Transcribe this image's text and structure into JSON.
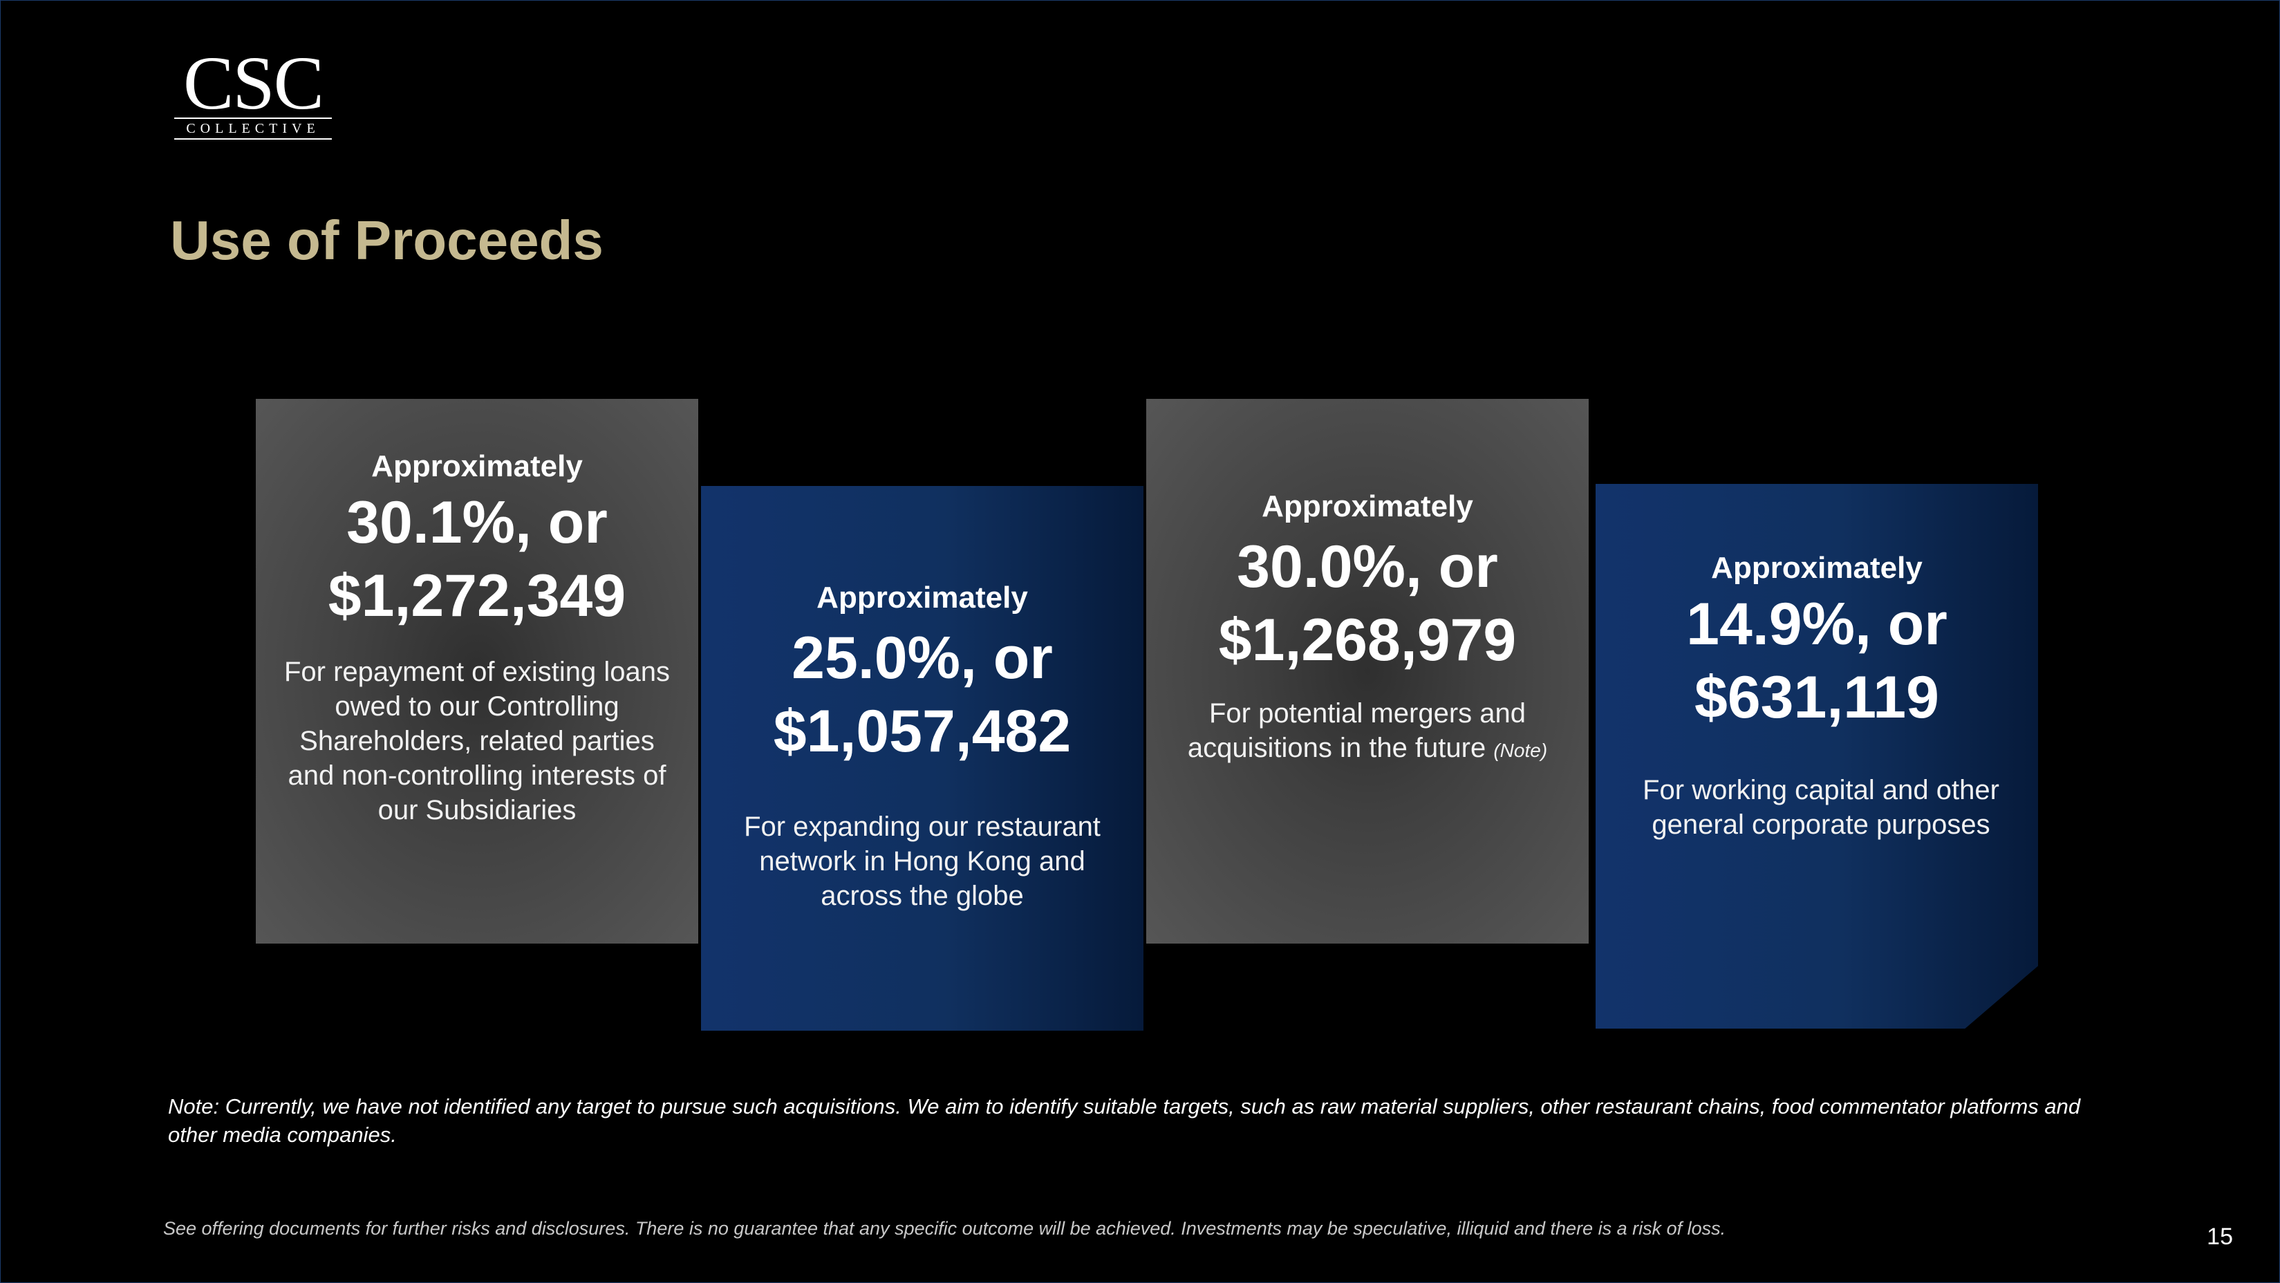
{
  "logo": {
    "mark": "CSC",
    "subtitle": "COLLECTIVE"
  },
  "page_title": "Use of Proceeds",
  "cards": [
    {
      "label": "Approximately",
      "amount_line1": "30.1%, or",
      "amount_line2": "$1,272,349",
      "description": "For repayment of existing loans owed to our Controlling Shareholders, related parties and non-controlling interests of our Subsidiaries",
      "note": ""
    },
    {
      "label": "Approximately",
      "amount_line1": "25.0%, or",
      "amount_line2": "$1,057,482",
      "description": "For expanding our restaurant network in Hong Kong and across the globe",
      "note": ""
    },
    {
      "label": "Approximately",
      "amount_line1": "30.0%, or",
      "amount_line2": "$1,268,979",
      "description": "For potential mergers and acquisitions in the future",
      "note": "(Note)"
    },
    {
      "label": "Approximately",
      "amount_line1": "14.9%, or",
      "amount_line2": "$631,119",
      "description": "For working capital and other general corporate purposes",
      "note": ""
    }
  ],
  "note_text": "Note: Currently, we have not identified any target to pursue such acquisitions. We aim to identify suitable targets, such as raw material suppliers, other restaurant chains, food commentator platforms and other media companies.",
  "disclaimer": "See offering documents for further risks and disclosures. There is no guarantee that any specific outcome will be achieved. Investments may be speculative, illiquid and there is a risk of loss.",
  "page_number": "15",
  "colors": {
    "title": "#c5b990",
    "gray_card": "#565656",
    "blue_card": "#12336b",
    "background": "#000000"
  }
}
